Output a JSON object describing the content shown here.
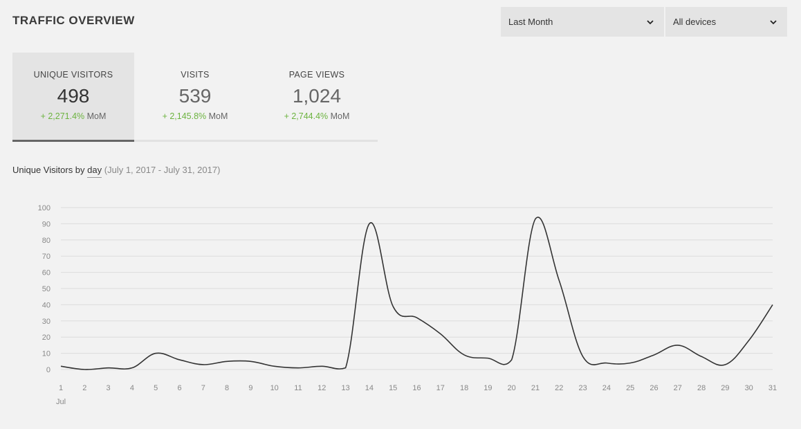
{
  "header": {
    "title": "TRAFFIC OVERVIEW"
  },
  "filters": {
    "range": {
      "selected": "Last Month",
      "icon": "chevron-down-icon"
    },
    "device": {
      "selected": "All devices",
      "icon": "chevron-down-icon"
    }
  },
  "metrics": [
    {
      "label": "UNIQUE VISITORS",
      "value": "498",
      "change": "+ 2,271.4%",
      "suffix": "MoM",
      "active": true
    },
    {
      "label": "VISITS",
      "value": "539",
      "change": "+ 2,145.8%",
      "suffix": "MoM",
      "active": false
    },
    {
      "label": "PAGE VIEWS",
      "value": "1,024",
      "change": "+ 2,744.4%",
      "suffix": "MoM",
      "active": false
    }
  ],
  "chart_header": {
    "prefix": "Unique Visitors by",
    "granularity": "day",
    "range": "(July 1, 2017 - July 31, 2017)"
  },
  "chart_data": {
    "type": "line",
    "x": [
      1,
      2,
      3,
      4,
      5,
      6,
      7,
      8,
      9,
      10,
      11,
      12,
      13,
      14,
      15,
      16,
      17,
      18,
      19,
      20,
      21,
      22,
      23,
      24,
      25,
      26,
      27,
      28,
      29,
      30,
      31
    ],
    "x_month_label": "Jul",
    "series": [
      {
        "values": [
          2,
          0,
          1,
          1,
          10,
          6,
          3,
          5,
          5,
          2,
          1,
          2,
          1,
          90,
          39,
          32,
          22,
          9,
          7,
          6,
          93,
          55,
          8,
          4,
          4,
          9,
          15,
          8,
          3,
          18,
          40
        ]
      }
    ],
    "y_ticks": [
      0,
      10,
      20,
      30,
      40,
      50,
      60,
      70,
      80,
      90,
      100
    ],
    "ylim": [
      0,
      100
    ],
    "grid": true,
    "colors": {
      "line": "#333333",
      "grid": "#dcdcdc",
      "positive": "#6cb33f"
    }
  }
}
